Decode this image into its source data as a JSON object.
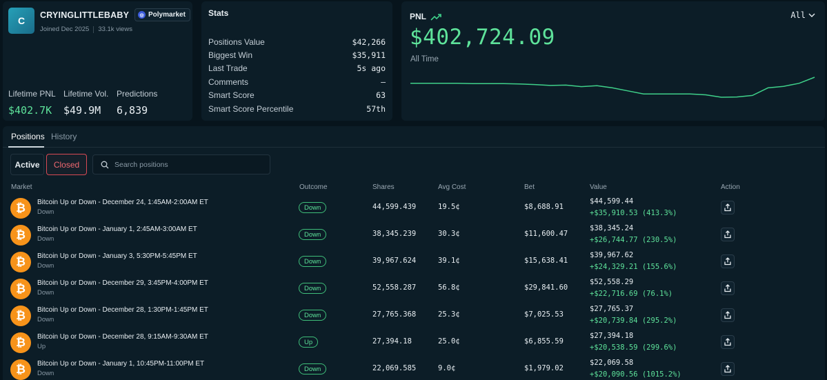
{
  "profile": {
    "avatar_letter": "C",
    "username": "CRYINGLITTLEBABY",
    "badge": "Polymarket",
    "joined": "Joined Dec 2025",
    "views": "33.1k views",
    "summary": [
      {
        "label": "Lifetime PNL",
        "value": "$402.7K",
        "color": "#5ee29a"
      },
      {
        "label": "Lifetime Vol.",
        "value": "$49.9M",
        "color": "#e8eef2"
      },
      {
        "label": "Predictions",
        "value": "6,839",
        "color": "#e8eef2"
      }
    ]
  },
  "stats": {
    "title": "Stats",
    "rows": [
      {
        "label": "Positions Value",
        "value": "$42,266"
      },
      {
        "label": "Biggest Win",
        "value": "$35,911"
      },
      {
        "label": "Last Trade",
        "value": "5s ago"
      },
      {
        "label": "Comments",
        "value": "–"
      },
      {
        "label": "Smart Score",
        "value": "63"
      },
      {
        "label": "Smart Score Percentile",
        "value": "57th"
      }
    ]
  },
  "pnl": {
    "label": "PNL",
    "amount": "$402,724.09",
    "period_label": "All Time",
    "range_selector": "All",
    "line_color": "#3fd18a",
    "trend_level": [
      0.2,
      0.2,
      0.2,
      0.2,
      0.21,
      0.21,
      0.21,
      0.22,
      0.24,
      0.27,
      0.26,
      0.31,
      0.28,
      0.35,
      0.45,
      0.55,
      0.55,
      0.55,
      0.55,
      0.58,
      0.66,
      0.65,
      0.6,
      0.35,
      0.3,
      0.2,
      0.0
    ]
  },
  "positions": {
    "tabs": [
      {
        "label": "Positions"
      },
      {
        "label": "History"
      }
    ],
    "filters": {
      "active": "Active",
      "closed": "Closed"
    },
    "search_placeholder": "Search positions",
    "columns": {
      "market": "Market",
      "outcome": "Outcome",
      "shares": "Shares",
      "avg_cost": "Avg Cost",
      "bet": "Bet",
      "value": "Value",
      "action": "Action"
    },
    "rows": [
      {
        "market": "Bitcoin Up or Down - December 24, 1:45AM-2:00AM ET",
        "side": "Down",
        "outcome": "Down",
        "shares": "44,599.439",
        "avg_cost": "19.5¢",
        "bet": "$8,688.91",
        "value": "$44,599.44",
        "pnl": "+$35,910.53 (413.3%)"
      },
      {
        "market": "Bitcoin Up or Down - January 1, 2:45AM-3:00AM ET",
        "side": "Down",
        "outcome": "Down",
        "shares": "38,345.239",
        "avg_cost": "30.3¢",
        "bet": "$11,600.47",
        "value": "$38,345.24",
        "pnl": "+$26,744.77 (230.5%)"
      },
      {
        "market": "Bitcoin Up or Down - January 3, 5:30PM-5:45PM ET",
        "side": "Down",
        "outcome": "Down",
        "shares": "39,967.624",
        "avg_cost": "39.1¢",
        "bet": "$15,638.41",
        "value": "$39,967.62",
        "pnl": "+$24,329.21 (155.6%)"
      },
      {
        "market": "Bitcoin Up or Down - December 29, 3:45PM-4:00PM ET",
        "side": "Down",
        "outcome": "Down",
        "shares": "52,558.287",
        "avg_cost": "56.8¢",
        "bet": "$29,841.60",
        "value": "$52,558.29",
        "pnl": "+$22,716.69 (76.1%)"
      },
      {
        "market": "Bitcoin Up or Down - December 28, 1:30PM-1:45PM ET",
        "side": "Down",
        "outcome": "Down",
        "shares": "27,765.368",
        "avg_cost": "25.3¢",
        "bet": "$7,025.53",
        "value": "$27,765.37",
        "pnl": "+$20,739.84 (295.2%)"
      },
      {
        "market": "Bitcoin Up or Down - December 28, 9:15AM-9:30AM ET",
        "side": "Up",
        "outcome": "Up",
        "shares": "27,394.18",
        "avg_cost": "25.0¢",
        "bet": "$6,855.59",
        "value": "$27,394.18",
        "pnl": "+$20,538.59 (299.6%)"
      },
      {
        "market": "Bitcoin Up or Down - January 1, 10:45PM-11:00PM ET",
        "side": "Down",
        "outcome": "Down",
        "shares": "22,069.585",
        "avg_cost": "9.0¢",
        "bet": "$1,979.02",
        "value": "$22,069.58",
        "pnl": "+$20,090.56 (1015.2%)"
      }
    ]
  },
  "icons": {
    "search": "search-icon",
    "share": "share-icon",
    "trend": "trend-up-icon",
    "chevron": "chevron-down-icon",
    "bitcoin": "bitcoin-icon"
  }
}
